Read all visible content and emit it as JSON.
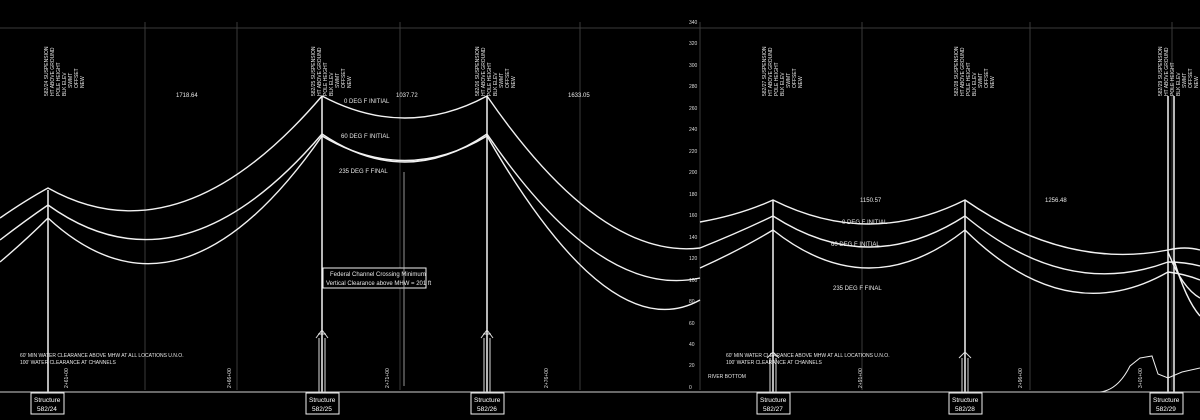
{
  "panels": [
    {
      "id": "left",
      "spans": [
        "1718.64",
        "1037.72",
        "1633.05"
      ],
      "wire_labels": [
        "0 DEG F INITIAL",
        "60 DEG F INITIAL",
        "235 DEG F FINAL"
      ],
      "channel_note": {
        "line1": "Federal Channel Crossing Minimum",
        "line2": "Vertical Clearance above MHW = 201 ft"
      },
      "clearance_note": {
        "line1": "60' MIN WATER CLEARANCE ABOVE MHW AT ALL LOCATIONS U.N.O.",
        "line2": "100' WATER CLEARANCE AT CHANNELS"
      },
      "stations": [
        "2+61+00",
        "2+66+00",
        "2+71+00",
        "2+76+00"
      ],
      "structures": [
        {
          "line1": "Structure",
          "line2": "582/24"
        },
        {
          "line1": "Structure",
          "line2": "582/25"
        },
        {
          "line1": "Structure",
          "line2": "582/26"
        }
      ]
    },
    {
      "id": "right",
      "spans": [
        "1150.57",
        "1256.48"
      ],
      "wire_labels": [
        "0 DEG F INITIAL",
        "60 DEG F INITIAL",
        "235 DEG F FINAL"
      ],
      "clearance_note": {
        "line1": "60' MIN WATER CLEARANCE ABOVE MHW AT ALL LOCATIONS U.N.O.",
        "line2": "100' WATER CLEARANCE AT CHANNELS"
      },
      "river_bottom": "RIVER BOTTOM",
      "stations": [
        "2+91+00",
        "2+96+00",
        "3+01+00"
      ],
      "structures": [
        {
          "line1": "Structure",
          "line2": "582/27"
        },
        {
          "line1": "Structure",
          "line2": "582/28"
        },
        {
          "line1": "Structure",
          "line2": "582/29"
        }
      ]
    }
  ],
  "elevation_axis": [
    "340",
    "320",
    "300",
    "280",
    "260",
    "240",
    "220",
    "200",
    "180",
    "160",
    "140",
    "120",
    "100",
    "80",
    "60",
    "40",
    "20",
    "0"
  ],
  "structure_header": {
    "ids": [
      "582/24",
      "582/25",
      "582/26",
      "582/27",
      "582/28",
      "582/29"
    ],
    "lines": [
      [
        "582/24 SUSPENSION",
        "HT ABOVE GROUND",
        "POLE HEIGHT",
        "BLK ELEV",
        "SWMT",
        "OFFSET",
        "NEW"
      ],
      [
        "582/25 SUSPENSION",
        "HT ABOVE GROUND",
        "POLE HEIGHT",
        "BLK ELEV",
        "SWMT",
        "OFFSET",
        "NEW"
      ],
      [
        "582/26 SUSPENSION",
        "HT ABOVE GROUND",
        "POLE HEIGHT",
        "BLK ELEV",
        "SWMT",
        "OFFSET",
        "NEW"
      ],
      [
        "582/27 SUSPENSION",
        "HT ABOVE GROUND",
        "POLE HEIGHT",
        "BLK ELEV",
        "SWMT",
        "OFFSET",
        "NEW"
      ],
      [
        "582/28 SUSPENSION",
        "HT ABOVE GROUND",
        "POLE HEIGHT",
        "BLK ELEV",
        "SWMT",
        "OFFSET",
        "NEW"
      ],
      [
        "582/29 SUSPENSION",
        "HT ABOVE GROUND",
        "POLE HEIGHT",
        "BLK ELEV",
        "SWMT",
        "OFFSET",
        "NEW"
      ]
    ]
  },
  "colors": {
    "background": "#000000",
    "line": "#f2f2f2",
    "grid": "#3a3a3a"
  }
}
